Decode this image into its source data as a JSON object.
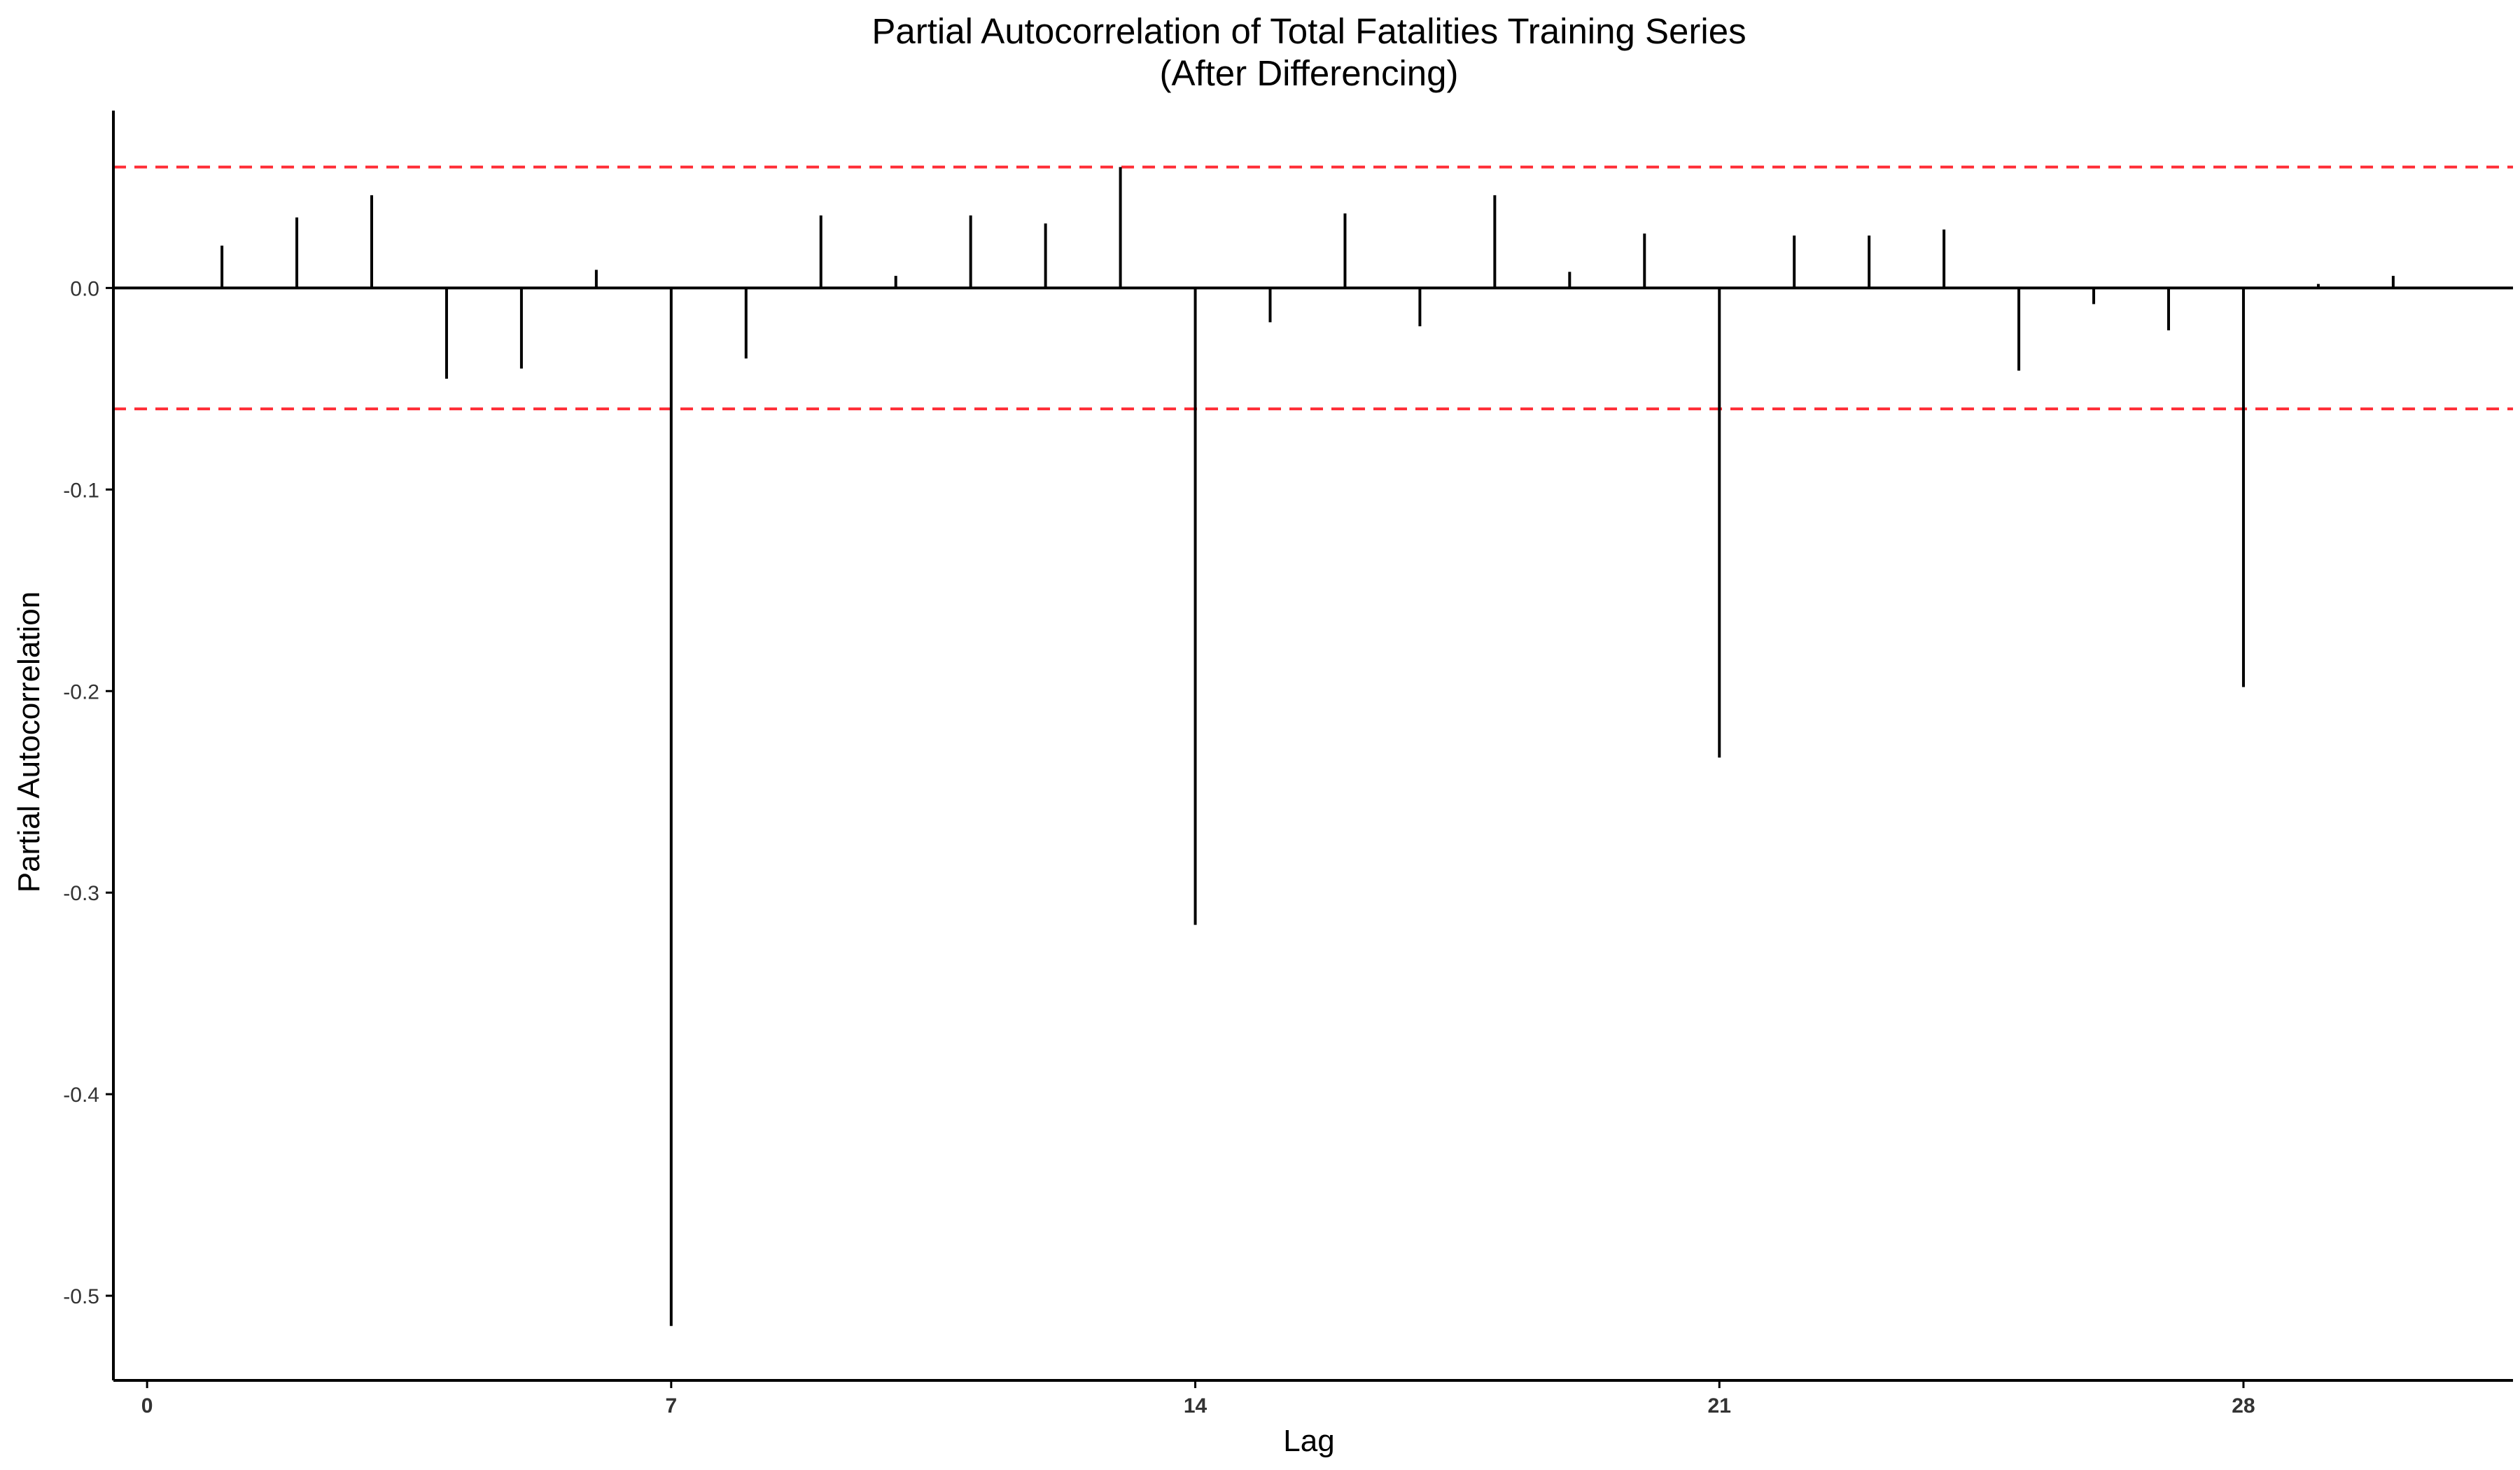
{
  "chart_data": {
    "type": "bar",
    "title": "Partial Autocorrelation of Total Fatalities Training Series",
    "subtitle": "(After Differencing)",
    "xlabel": "Lag",
    "ylabel": "Partial Autocorrelation",
    "xlim": [
      -0.45,
      31.6
    ],
    "ylim": [
      -0.542,
      0.088
    ],
    "x_ticks": [
      0,
      7,
      14,
      21,
      28
    ],
    "x_tick_labels": [
      "0",
      "7",
      "14",
      "21",
      "28"
    ],
    "y_ticks": [
      0.0,
      -0.1,
      -0.2,
      -0.3,
      -0.4,
      -0.5
    ],
    "y_tick_labels": [
      "0.0",
      "-0.1",
      "-0.2",
      "-0.3",
      "-0.4",
      "-0.5"
    ],
    "confidence_bound": 0.06,
    "grid": false,
    "colors": {
      "bars": "#000000",
      "confidence_lines": "#ff2d36",
      "axis": "#000000"
    },
    "lags": [
      1,
      2,
      3,
      4,
      5,
      6,
      7,
      8,
      9,
      10,
      11,
      12,
      13,
      14,
      15,
      16,
      17,
      18,
      19,
      20,
      21,
      22,
      23,
      24,
      25,
      26,
      27,
      28,
      29,
      30
    ],
    "values": [
      0.021,
      0.035,
      0.046,
      -0.045,
      -0.04,
      0.009,
      -0.515,
      -0.035,
      0.036,
      0.006,
      0.036,
      0.032,
      0.06,
      -0.316,
      -0.017,
      0.037,
      -0.019,
      0.046,
      0.008,
      0.027,
      -0.233,
      0.026,
      0.026,
      0.029,
      -0.041,
      -0.008,
      -0.021,
      -0.198,
      0.002,
      0.006
    ]
  }
}
